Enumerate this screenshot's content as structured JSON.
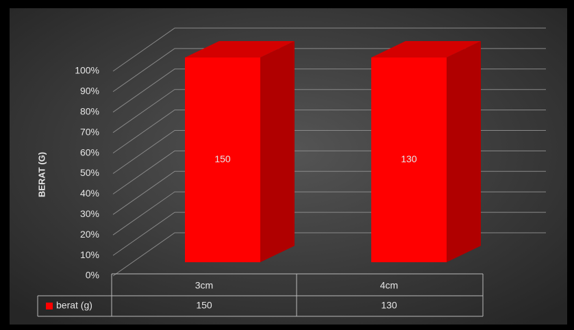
{
  "chart_data": {
    "type": "bar3d_percent",
    "categories": [
      "3cm",
      "4cm"
    ],
    "series": [
      {
        "name": "berat (g)",
        "color": "#ff0000",
        "values": [
          150,
          130
        ]
      }
    ],
    "y_label": "BERAT (G)",
    "ylim": [
      0,
      100
    ],
    "yticks": [
      {
        "value": 0,
        "label": "0%"
      },
      {
        "value": 10,
        "label": "10%"
      },
      {
        "value": 20,
        "label": "20%"
      },
      {
        "value": 30,
        "label": "30%"
      },
      {
        "value": 40,
        "label": "40%"
      },
      {
        "value": 50,
        "label": "50%"
      },
      {
        "value": 60,
        "label": "60%"
      },
      {
        "value": 70,
        "label": "70%"
      },
      {
        "value": 80,
        "label": "80%"
      },
      {
        "value": 90,
        "label": "90%"
      },
      {
        "value": 100,
        "label": "100%"
      }
    ],
    "grid": true
  }
}
